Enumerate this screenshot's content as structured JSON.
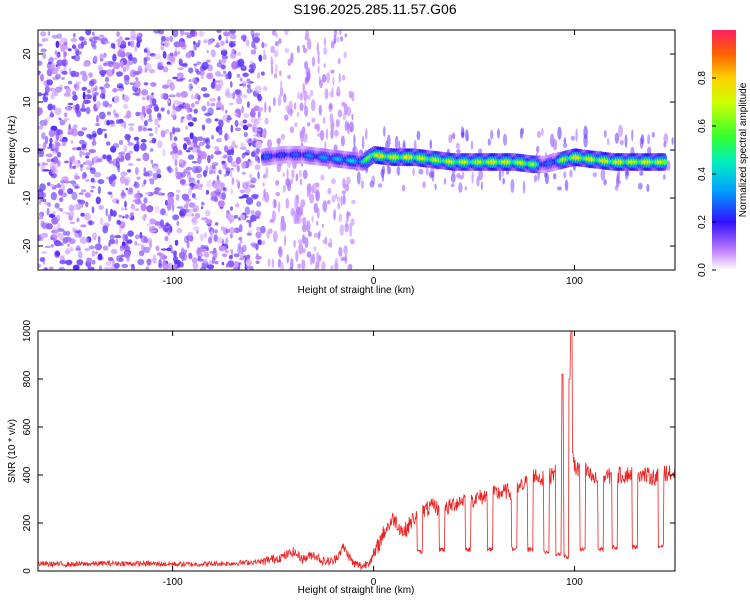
{
  "title": "S196.2025.285.11.57.G06",
  "chart_data": [
    {
      "type": "heatmap",
      "title": "S196.2025.285.11.57.G06",
      "xlabel": "Height of straight line (km)",
      "ylabel": "Frequency (Hz)",
      "xlim": [
        -167,
        150
      ],
      "ylim": [
        -25,
        25
      ],
      "xticks": [
        -100,
        0,
        100
      ],
      "yticks": [
        -20,
        -10,
        0,
        10,
        20
      ],
      "colorbar": {
        "label": "Normalized spectral amplitude",
        "range": [
          0,
          1
        ],
        "ticks": [
          0.0,
          0.2,
          0.4,
          0.6,
          0.8
        ]
      },
      "description": "Noisy low amplitude (purple) scatter for heights below about -55 km; from about -55 km to 150 km a coherent band near -2 Hz with amplitude peaks up to ~0.9",
      "ridge": {
        "x": [
          -55,
          -45,
          -35,
          -25,
          -15,
          -5,
          0,
          10,
          20,
          30,
          40,
          50,
          55,
          60,
          70,
          80,
          85,
          90,
          95,
          100,
          110,
          120,
          130,
          140,
          145
        ],
        "frequency": [
          -1.5,
          -1.0,
          -1.0,
          -1.5,
          -2.0,
          -2.5,
          -1.0,
          -1.5,
          -1.5,
          -2.0,
          -2.5,
          -2.5,
          -2.5,
          -2.5,
          -2.5,
          -3.0,
          -3.0,
          -2.5,
          -2.0,
          -1.5,
          -2.0,
          -2.5,
          -2.5,
          -2.5,
          -2.5
        ],
        "amplitude": [
          0.3,
          0.25,
          0.3,
          0.35,
          0.4,
          0.45,
          0.85,
          0.75,
          0.8,
          0.7,
          0.75,
          0.7,
          0.75,
          0.8,
          0.75,
          0.7,
          0.25,
          0.35,
          0.7,
          0.8,
          0.75,
          0.8,
          0.75,
          0.8,
          0.7
        ]
      }
    },
    {
      "type": "line",
      "xlabel": "Height of straight line (km)",
      "ylabel": "SNR (10 * v/v)",
      "xlim": [
        -167,
        150
      ],
      "ylim": [
        0,
        1000
      ],
      "xticks": [
        -100,
        0,
        100
      ],
      "yticks": [
        0,
        200,
        400,
        600,
        800,
        1000
      ],
      "color": "#ee2222",
      "series": [
        {
          "name": "SNR",
          "x": [
            -167,
            -150,
            -130,
            -110,
            -90,
            -70,
            -55,
            -45,
            -40,
            -35,
            -30,
            -25,
            -20,
            -15,
            -10,
            -5,
            0,
            5,
            10,
            15,
            20,
            25,
            30,
            35,
            40,
            45,
            50,
            55,
            60,
            65,
            70,
            75,
            80,
            85,
            90,
            93,
            95,
            97,
            98,
            99,
            100,
            103,
            105,
            110,
            115,
            120,
            125,
            130,
            135,
            140,
            145,
            150
          ],
          "y": [
            30,
            28,
            32,
            30,
            28,
            32,
            40,
            60,
            80,
            50,
            70,
            40,
            40,
            100,
            30,
            20,
            60,
            160,
            220,
            160,
            220,
            250,
            270,
            250,
            280,
            300,
            300,
            310,
            320,
            330,
            330,
            360,
            400,
            380,
            410,
            420,
            450,
            430,
            980,
            520,
            430,
            420,
            420,
            380,
            390,
            400,
            400,
            410,
            400,
            390,
            410,
            400
          ]
        }
      ],
      "dips": [
        {
          "x": 23,
          "y": 80
        },
        {
          "x": 34,
          "y": 90
        },
        {
          "x": 47,
          "y": 90
        },
        {
          "x": 58,
          "y": 90
        },
        {
          "x": 70,
          "y": 90
        },
        {
          "x": 78,
          "y": 90
        },
        {
          "x": 86,
          "y": 80
        },
        {
          "x": 92,
          "y": 70
        },
        {
          "x": 96,
          "y": 60
        },
        {
          "x": 104,
          "y": 90
        },
        {
          "x": 113,
          "y": 90
        },
        {
          "x": 120,
          "y": 100
        },
        {
          "x": 130,
          "y": 100
        },
        {
          "x": 143,
          "y": 100
        }
      ],
      "spikes": [
        {
          "x": 94,
          "y": 820
        },
        {
          "x": 98.5,
          "y": 1000
        },
        {
          "x": 97.5,
          "y": 800
        }
      ]
    }
  ]
}
